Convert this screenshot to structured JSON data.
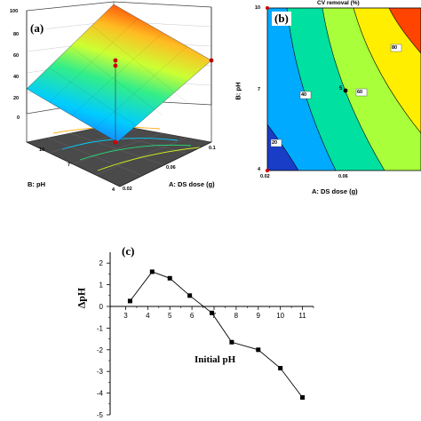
{
  "panel_a": {
    "label": "(a)",
    "z_ticks": [
      "100",
      "80",
      "60",
      "40",
      "20",
      "0"
    ],
    "x_axis_label": "A: DS dose  (g)",
    "x_ticks": [
      "0.02",
      "0.06",
      "0.1"
    ],
    "y_axis_label": "B: pH",
    "y_ticks": [
      "4",
      "7",
      "10"
    ],
    "colors": {
      "surface_high": "#ff3300",
      "surface_mid": "#ccff33",
      "surface_low": "#00ccff",
      "floor": "#555555",
      "points": "#cc0000"
    }
  },
  "panel_b": {
    "label": "(b)",
    "title": "CV removal (%)",
    "x_axis_label": "A: DS dose  (g)",
    "x_ticks": [
      "0.02",
      "0.06"
    ],
    "y_axis_label": "B: pH",
    "y_ticks": [
      "10",
      "7",
      "4"
    ],
    "contour_labels": [
      "20",
      "40",
      "60",
      "80"
    ],
    "point_label": "5",
    "colors": {
      "c0": "#1a3dc7",
      "c1": "#00aaff",
      "c2": "#00e0a0",
      "c3": "#a8ff3a",
      "c4": "#ffee00",
      "c5": "#ff4400"
    }
  },
  "panel_c": {
    "label": "(c)",
    "ylabel": "ΔpH",
    "xlabel": "Initial pH",
    "x_ticks": [
      "3",
      "4",
      "5",
      "6",
      "7",
      "8",
      "9",
      "10",
      "11"
    ],
    "y_ticks": [
      "2",
      "1",
      "0",
      "-1",
      "-2",
      "-3",
      "-4",
      "-5"
    ]
  },
  "chart_data": [
    {
      "type": "surface",
      "title": "",
      "xlabel": "A: DS dose  (g)",
      "ylabel": "B: pH",
      "zlabel": "",
      "xlim": [
        0.02,
        0.1
      ],
      "ylim": [
        4,
        10
      ],
      "zlim": [
        0,
        100
      ]
    },
    {
      "type": "contour",
      "title": "CV removal (%)",
      "xlabel": "A: DS dose  (g)",
      "ylabel": "B: pH",
      "xlim": [
        0.02,
        0.1
      ],
      "ylim": [
        4,
        10
      ],
      "contour_levels": [
        20,
        40,
        60,
        80
      ],
      "design_points": [
        {
          "x": 0.06,
          "y": 7,
          "label": "5"
        }
      ]
    },
    {
      "type": "line",
      "title": "",
      "xlabel": "Initial pH",
      "ylabel": "ΔpH",
      "xlim": [
        2.5,
        11.5
      ],
      "ylim": [
        -5,
        2.5
      ],
      "x": [
        3.2,
        4.2,
        5.0,
        5.9,
        6.9,
        7.8,
        9.0,
        10.0,
        11.0
      ],
      "y": [
        0.25,
        1.6,
        1.3,
        0.5,
        -0.3,
        -1.65,
        -2.0,
        -2.85,
        -4.2
      ]
    }
  ]
}
